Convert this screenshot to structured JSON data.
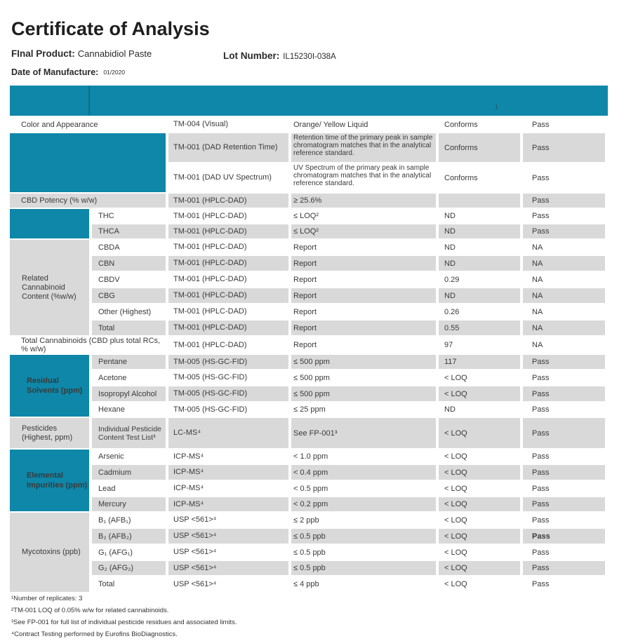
{
  "page": {
    "title": "Certificate of Analysis",
    "final_product_label": "FInal Product:",
    "final_product_value": "Cannabidiol Paste",
    "lot_label": "Lot Number:",
    "lot_value": "IL15230I-038A",
    "dom_label": "Date of Manufacture:",
    "dom_value": "01/2020"
  },
  "colors": {
    "teal": "#0e87a9",
    "teal_separator": "#0c6f8d",
    "stripe_gray": "#d9d9d9",
    "text": "#3a3a3a"
  },
  "table": {
    "header_note": "1",
    "rows": [
      {
        "h": 23,
        "cells": [
          {
            "t": "Color and Appearance",
            "c": 2,
            "cls": "span-label w",
            "n": "test-name"
          },
          {
            "t": "TM-004 (Visual)",
            "cls": "method w",
            "n": "method"
          },
          {
            "t": "Orange/ Yellow Liquid",
            "cls": "spec w",
            "n": "specification"
          },
          {
            "t": "Conforms",
            "cls": "result w",
            "n": "result"
          },
          {
            "t": "Pass",
            "cls": "pass w",
            "n": "pass-status"
          }
        ]
      },
      {
        "h": 43,
        "cells": [
          {
            "t": "",
            "c": 2,
            "r": 2,
            "cls": "lbl-teal-empty",
            "n": "section-identification"
          },
          {
            "t": "TM-001 (DAD Retention Time)",
            "cls": "method g",
            "n": "method"
          },
          {
            "t": "Retention time of the primary peak in sample chromatogram matches that in the analytical reference standard.",
            "cls": "spec long g",
            "n": "specification"
          },
          {
            "t": "Conforms",
            "cls": "result g",
            "n": "result"
          },
          {
            "t": "Pass",
            "cls": "pass g",
            "n": "pass-status"
          }
        ]
      },
      {
        "h": 43,
        "cells": [
          {
            "t": "TM-001 (DAD UV Spectrum)",
            "cls": "method w",
            "n": "method"
          },
          {
            "t": "UV Spectrum of the primary peak in sample chromatogram matches that in the analytical reference standard.",
            "cls": "spec long w",
            "n": "specification"
          },
          {
            "t": "Conforms",
            "cls": "result w",
            "n": "result"
          },
          {
            "t": "Pass",
            "cls": "pass w",
            "n": "pass-status"
          }
        ]
      },
      {
        "h": 22,
        "cells": [
          {
            "t": "CBD Potency (% w/w)",
            "c": 2,
            "cls": "span-label g",
            "n": "test-name"
          },
          {
            "t": "TM-001 (HPLC-DAD)",
            "cls": "method g",
            "n": "method"
          },
          {
            "t": "≥ 25.6%",
            "cls": "spec g",
            "n": "specification"
          },
          {
            "t": "",
            "cls": "result g",
            "n": "result"
          },
          {
            "t": "Pass",
            "cls": "pass g",
            "n": "pass-status"
          }
        ]
      },
      {
        "h": 22,
        "cells": [
          {
            "t": "",
            "r": 2,
            "cls": "lbl-teal-empty",
            "n": "section-thc"
          },
          {
            "t": "THC",
            "cls": "name w",
            "n": "test-name"
          },
          {
            "t": "TM-001 (HPLC-DAD)",
            "cls": "method w",
            "n": "method"
          },
          {
            "t": "≤ LOQ²",
            "cls": "spec w",
            "n": "specification"
          },
          {
            "t": "ND",
            "cls": "result w",
            "n": "result"
          },
          {
            "t": "Pass",
            "cls": "pass w",
            "n": "pass-status"
          }
        ]
      },
      {
        "h": 22,
        "cells": [
          {
            "t": "THCA",
            "cls": "name g",
            "n": "test-name"
          },
          {
            "t": "TM-001 (HPLC-DAD)",
            "cls": "method g",
            "n": "method"
          },
          {
            "t": "≤ LOQ²",
            "cls": "spec g",
            "n": "specification"
          },
          {
            "t": "ND",
            "cls": "result g",
            "n": "result"
          },
          {
            "t": "Pass",
            "cls": "pass g",
            "n": "pass-status"
          }
        ]
      },
      {
        "h": 23,
        "cells": [
          {
            "t": "Related Cannabinoid Content (%w/w)",
            "r": 6,
            "cls": "lbl-gray",
            "n": "section-related-cannabinoid-content"
          },
          {
            "t": "CBDA",
            "cls": "name w",
            "n": "test-name"
          },
          {
            "t": "TM-001 (HPLC-DAD)",
            "cls": "method w",
            "n": "method"
          },
          {
            "t": "Report",
            "cls": "spec w",
            "n": "specification"
          },
          {
            "t": "ND",
            "cls": "result w",
            "n": "result"
          },
          {
            "t": "NA",
            "cls": "pass w",
            "n": "pass-status"
          }
        ]
      },
      {
        "h": 23,
        "cells": [
          {
            "t": "CBN",
            "cls": "name g",
            "n": "test-name"
          },
          {
            "t": "TM-001 (HPLC-DAD)",
            "cls": "method g",
            "n": "method"
          },
          {
            "t": "Report",
            "cls": "spec g",
            "n": "specification"
          },
          {
            "t": "ND",
            "cls": "result g",
            "n": "result"
          },
          {
            "t": "NA",
            "cls": "pass g",
            "n": "pass-status"
          }
        ]
      },
      {
        "h": 23,
        "cells": [
          {
            "t": "CBDV",
            "cls": "name w",
            "n": "test-name"
          },
          {
            "t": "TM-001 (HPLC-DAD)",
            "cls": "method w",
            "n": "method"
          },
          {
            "t": "Report",
            "cls": "spec w",
            "n": "specification"
          },
          {
            "t": "0.29",
            "cls": "result w",
            "n": "result"
          },
          {
            "t": "NA",
            "cls": "pass w",
            "n": "pass-status"
          }
        ]
      },
      {
        "h": 23,
        "cells": [
          {
            "t": "CBG",
            "cls": "name g",
            "n": "test-name"
          },
          {
            "t": "TM-001 (HPLC-DAD)",
            "cls": "method g",
            "n": "method"
          },
          {
            "t": "Report",
            "cls": "spec g",
            "n": "specification"
          },
          {
            "t": "ND",
            "cls": "result g",
            "n": "result"
          },
          {
            "t": "NA",
            "cls": "pass g",
            "n": "pass-status"
          }
        ]
      },
      {
        "h": 23,
        "cells": [
          {
            "t": "Other (Highest)",
            "cls": "name w",
            "n": "test-name"
          },
          {
            "t": "TM-001 (HPLC-DAD)",
            "cls": "method w",
            "n": "method"
          },
          {
            "t": "Report",
            "cls": "spec w",
            "n": "specification"
          },
          {
            "t": "0.26",
            "cls": "result w",
            "n": "result"
          },
          {
            "t": "NA",
            "cls": "pass w",
            "n": "pass-status"
          }
        ]
      },
      {
        "h": 23,
        "cells": [
          {
            "t": "Total",
            "cls": "name g",
            "n": "test-name"
          },
          {
            "t": "TM-001 (HPLC-DAD)",
            "cls": "method g",
            "n": "method"
          },
          {
            "t": "Report",
            "cls": "spec g",
            "n": "specification"
          },
          {
            "t": "0.55",
            "cls": "result g",
            "n": "result"
          },
          {
            "t": "NA",
            "cls": "pass g",
            "n": "pass-status"
          }
        ]
      },
      {
        "h": 24,
        "cells": [
          {
            "t": "Total Cannabinoids (CBD plus total RCs, % w/w)",
            "c": 2,
            "cls": "span-label w",
            "n": "test-name"
          },
          {
            "t": "TM-001 (HPLC-DAD)",
            "cls": "method w",
            "n": "method"
          },
          {
            "t": "Report",
            "cls": "spec w",
            "n": "specification"
          },
          {
            "t": "97",
            "cls": "result w",
            "n": "result"
          },
          {
            "t": "NA",
            "cls": "pass w",
            "n": "pass-status"
          }
        ]
      },
      {
        "h": 22,
        "cells": [
          {
            "t": "Residual Solvents (ppm)",
            "r": 4,
            "cls": "lbl-teal",
            "n": "section-residual-solvents"
          },
          {
            "t": "Pentane",
            "cls": "name g",
            "n": "test-name"
          },
          {
            "t": "TM-005 (HS-GC-FID)",
            "cls": "method g",
            "n": "method"
          },
          {
            "t": "≤ 500 ppm",
            "cls": "spec g",
            "n": "specification"
          },
          {
            "t": "117",
            "cls": "result g",
            "n": "result"
          },
          {
            "t": "Pass",
            "cls": "pass g",
            "n": "pass-status"
          }
        ]
      },
      {
        "h": 23,
        "cells": [
          {
            "t": "Acetone",
            "cls": "name w",
            "n": "test-name"
          },
          {
            "t": "TM-005 (HS-GC-FID)",
            "cls": "method w",
            "n": "method"
          },
          {
            "t": "≤ 500 ppm",
            "cls": "spec w",
            "n": "specification"
          },
          {
            "t": "< LOQ",
            "cls": "result w",
            "n": "result"
          },
          {
            "t": "Pass",
            "cls": "pass w",
            "n": "pass-status"
          }
        ]
      },
      {
        "h": 23,
        "cells": [
          {
            "t": "Isopropyl Alcohol",
            "cls": "name g",
            "n": "test-name"
          },
          {
            "t": "TM-005 (HS-GC-FID)",
            "cls": "method g",
            "n": "method"
          },
          {
            "t": "≤ 500 ppm",
            "cls": "spec g",
            "n": "specification"
          },
          {
            "t": "< LOQ",
            "cls": "result g",
            "n": "result"
          },
          {
            "t": "Pass",
            "cls": "pass g",
            "n": "pass-status"
          }
        ]
      },
      {
        "h": 22,
        "cells": [
          {
            "t": "Hexane",
            "cls": "name w",
            "n": "test-name"
          },
          {
            "t": "TM-005 (HS-GC-FID)",
            "cls": "method w",
            "n": "method"
          },
          {
            "t": "≤ 25 ppm",
            "cls": "spec w",
            "n": "specification"
          },
          {
            "t": "ND",
            "cls": "result w",
            "n": "result"
          },
          {
            "t": "Pass",
            "cls": "pass w",
            "n": "pass-status"
          }
        ]
      },
      {
        "h": 45,
        "cells": [
          {
            "t": "Pesticides (Highest, ppm)",
            "cls": "lbl-gray",
            "n": "section-pesticides"
          },
          {
            "t": "Individual Pesticide Content Test List³",
            "cls": "name multiline g",
            "n": "test-name"
          },
          {
            "t": "LC-MS⁴",
            "cls": "method g",
            "n": "method"
          },
          {
            "t": "See FP-001³",
            "cls": "spec g",
            "n": "specification"
          },
          {
            "t": "< LOQ",
            "cls": "result g",
            "n": "result"
          },
          {
            "t": "Pass",
            "cls": "pass g",
            "n": "pass-status"
          }
        ]
      },
      {
        "h": 22,
        "cells": [
          {
            "t": "Elemental Impurities (ppm)",
            "r": 4,
            "cls": "lbl-teal",
            "n": "section-elemental-impurities"
          },
          {
            "t": "Arsenic",
            "cls": "name w",
            "n": "test-name"
          },
          {
            "t": "ICP-MS⁴",
            "cls": "method w",
            "n": "method"
          },
          {
            "t": "< 1.0 ppm",
            "cls": "spec w",
            "n": "specification"
          },
          {
            "t": "< LOQ",
            "cls": "result w",
            "n": "result"
          },
          {
            "t": "Pass",
            "cls": "pass w",
            "n": "pass-status"
          }
        ]
      },
      {
        "h": 23,
        "cells": [
          {
            "t": "Cadmium",
            "cls": "name g",
            "n": "test-name"
          },
          {
            "t": "ICP-MS⁴",
            "cls": "method g",
            "n": "method"
          },
          {
            "t": "< 0.4 ppm",
            "cls": "spec g",
            "n": "specification"
          },
          {
            "t": "< LOQ",
            "cls": "result g",
            "n": "result"
          },
          {
            "t": "Pass",
            "cls": "pass g",
            "n": "pass-status"
          }
        ]
      },
      {
        "h": 23,
        "cells": [
          {
            "t": "Lead",
            "cls": "name w",
            "n": "test-name"
          },
          {
            "t": "ICP-MS⁴",
            "cls": "method w",
            "n": "method"
          },
          {
            "t": "< 0.5 ppm",
            "cls": "spec w",
            "n": "specification"
          },
          {
            "t": "< LOQ",
            "cls": "result w",
            "n": "result"
          },
          {
            "t": "Pass",
            "cls": "pass w",
            "n": "pass-status"
          }
        ]
      },
      {
        "h": 22,
        "cells": [
          {
            "t": "Mercury",
            "cls": "name g",
            "n": "test-name"
          },
          {
            "t": "ICP-MS⁴",
            "cls": "method g",
            "n": "method"
          },
          {
            "t": "< 0.2 ppm",
            "cls": "spec g",
            "n": "specification"
          },
          {
            "t": "< LOQ",
            "cls": "result g",
            "n": "result"
          },
          {
            "t": "Pass",
            "cls": "pass g",
            "n": "pass-status"
          }
        ]
      },
      {
        "h": 23,
        "cells": [
          {
            "t": "Mycotoxins (ppb)",
            "r": 5,
            "cls": "lbl-gray",
            "n": "section-mycotoxins"
          },
          {
            "t": "B₁ (AFB₁)",
            "cls": "name w",
            "n": "test-name"
          },
          {
            "t": "USP <561>⁴",
            "cls": "method w",
            "n": "method"
          },
          {
            "t": "≤ 2 ppb",
            "cls": "spec w",
            "n": "specification"
          },
          {
            "t": "< LOQ",
            "cls": "result w",
            "n": "result"
          },
          {
            "t": "Pass",
            "cls": "pass w",
            "n": "pass-status"
          }
        ]
      },
      {
        "h": 23,
        "cells": [
          {
            "t": "B₂ (AFB₂)",
            "cls": "name g",
            "n": "test-name"
          },
          {
            "t": "USP <561>⁴",
            "cls": "method g",
            "n": "method"
          },
          {
            "t": "≤ 0.5 ppb",
            "cls": "spec g",
            "n": "specification"
          },
          {
            "t": "< LOQ",
            "cls": "result g",
            "n": "result"
          },
          {
            "t": "Pass",
            "cls": "pass g bold",
            "n": "pass-status"
          }
        ]
      },
      {
        "h": 23,
        "cells": [
          {
            "t": "G₁ (AFG₁)",
            "cls": "name w",
            "n": "test-name"
          },
          {
            "t": "USP <561>⁴",
            "cls": "method w",
            "n": "method"
          },
          {
            "t": "≤ 0.5 ppb",
            "cls": "spec w",
            "n": "specification"
          },
          {
            "t": "< LOQ",
            "cls": "result w",
            "n": "result"
          },
          {
            "t": "Pass",
            "cls": "pass w",
            "n": "pass-status"
          }
        ]
      },
      {
        "h": 22,
        "cells": [
          {
            "t": "G₂ (AFG₂)",
            "cls": "name g",
            "n": "test-name"
          },
          {
            "t": "USP <561>⁴",
            "cls": "method g",
            "n": "method"
          },
          {
            "t": "≤ 0.5 ppb",
            "cls": "spec g",
            "n": "specification"
          },
          {
            "t": "< LOQ",
            "cls": "result g",
            "n": "result"
          },
          {
            "t": "Pass",
            "cls": "pass g",
            "n": "pass-status"
          }
        ]
      },
      {
        "h": 24,
        "cells": [
          {
            "t": "Total",
            "cls": "name w",
            "n": "test-name"
          },
          {
            "t": "USP <561>⁴",
            "cls": "method w",
            "n": "method"
          },
          {
            "t": "≤ 4 ppb",
            "cls": "spec w",
            "n": "specification"
          },
          {
            "t": "< LOQ",
            "cls": "result w",
            "n": "result"
          },
          {
            "t": "Pass",
            "cls": "pass w",
            "n": "pass-status"
          }
        ]
      }
    ]
  },
  "footnotes": [
    "¹Number of replicates: 3",
    "²TM-001 LOQ of 0.05% w/w for related cannabinoids.",
    "³See FP-001 for full list of individual pesticide residues and associated limits.",
    "⁴Contract Testing performed by Eurofins BioDiagnostics."
  ]
}
